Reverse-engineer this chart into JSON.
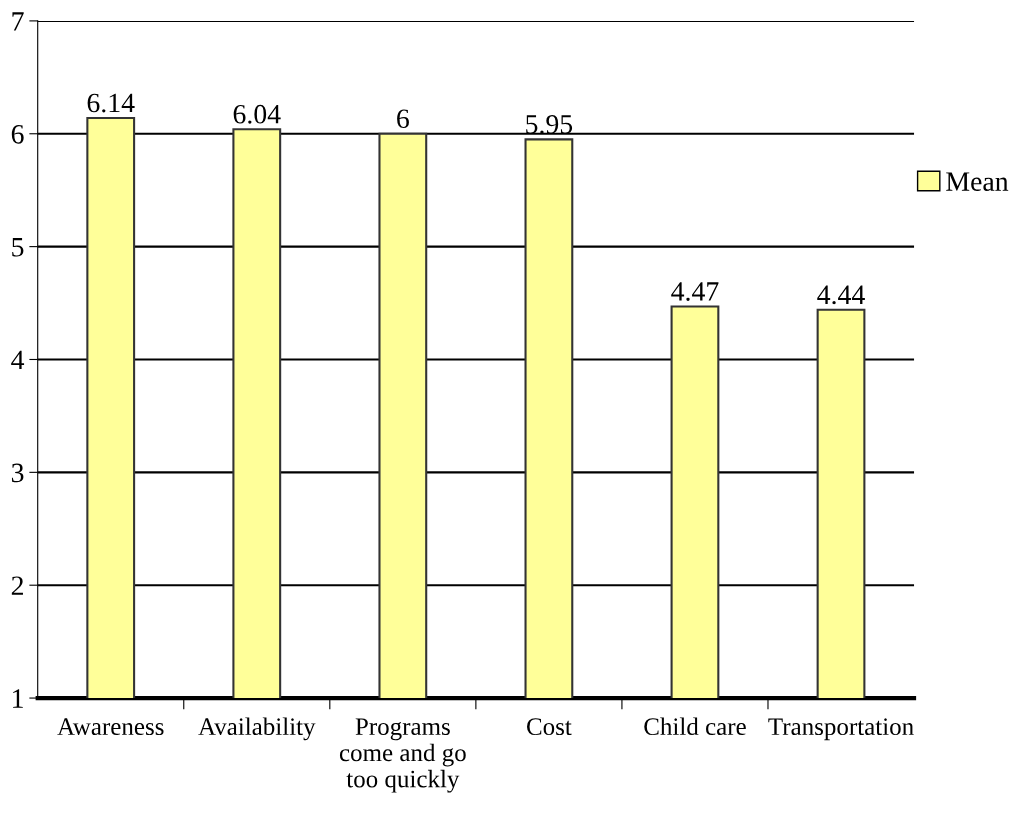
{
  "chart_data": {
    "type": "bar",
    "categories": [
      "Awareness",
      "Availability",
      "Programs\ncome and go\ntoo quickly",
      "Cost",
      "Child care",
      "Transportation"
    ],
    "series": [
      {
        "name": "Mean",
        "color": "#ffff99",
        "values": [
          6.14,
          6.04,
          6,
          5.95,
          4.47,
          4.44
        ]
      }
    ],
    "ylim": [
      1,
      7
    ],
    "yticks": [
      1,
      2,
      3,
      4,
      5,
      6,
      7
    ],
    "grid": "y",
    "legend": "right",
    "data_labels": true
  }
}
